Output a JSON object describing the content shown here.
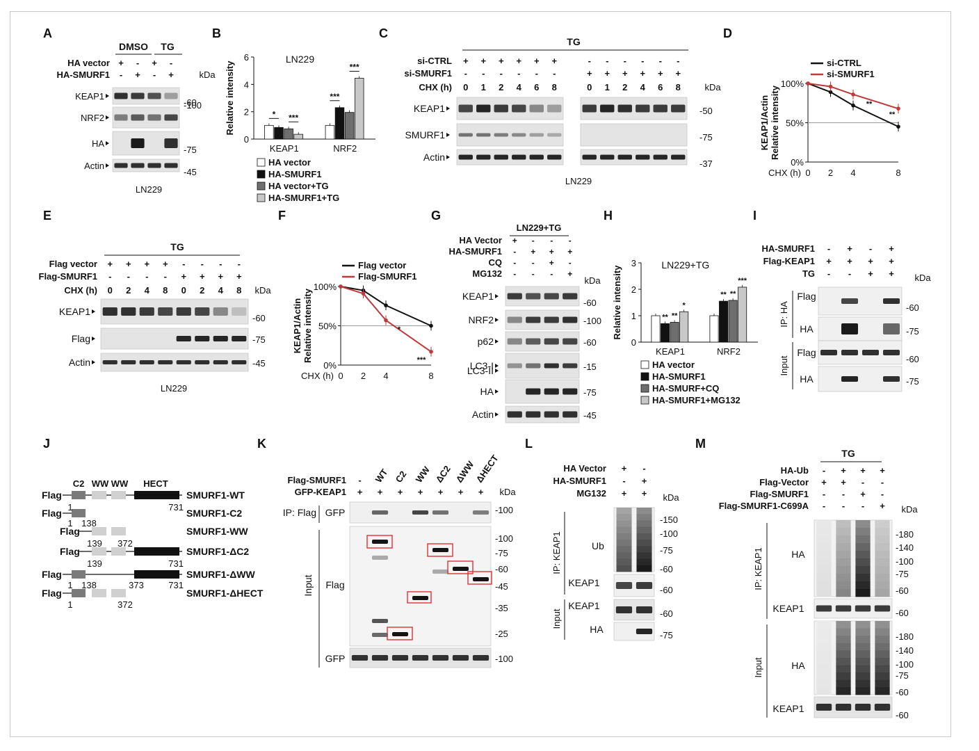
{
  "panels": {
    "A": "A",
    "B": "B",
    "C": "C",
    "D": "D",
    "E": "E",
    "F": "F",
    "G": "G",
    "H": "H",
    "I": "I",
    "J": "J",
    "K": "K",
    "L": "L",
    "M": "M"
  },
  "panel_a": {
    "groups": [
      "DMSO",
      "TG"
    ],
    "rows": [
      {
        "label": "HA vector",
        "signs": [
          "+",
          "-",
          "+",
          "-"
        ]
      },
      {
        "label": "HA-SMURF1",
        "signs": [
          "-",
          "+",
          "-",
          "+"
        ]
      }
    ],
    "kda": "kDa",
    "blots": [
      {
        "label": "KEAP1",
        "marker": "60"
      },
      {
        "label": "NRF2",
        "marker": "100"
      },
      {
        "label": "HA",
        "marker": "75"
      },
      {
        "label": "Actin",
        "marker": "45"
      }
    ],
    "cell": "LN229"
  },
  "panel_b": {
    "chart_data": {
      "type": "bar",
      "title": "LN229",
      "ylabel": "Relative intensity",
      "ylim": [
        0,
        6
      ],
      "yticks": [
        "0",
        "2",
        "4",
        "6"
      ],
      "categories": [
        "KEAP1",
        "NRF2"
      ],
      "series": [
        {
          "name": "HA vector",
          "values": [
            1.0,
            1.0
          ],
          "color": "#ffffff"
        },
        {
          "name": "HA-SMURF1",
          "values": [
            0.85,
            2.3
          ],
          "color": "#111111"
        },
        {
          "name": "HA vector+TG",
          "values": [
            0.75,
            1.95
          ],
          "color": "#6e6e6e"
        },
        {
          "name": "HA-SMURF1+TG",
          "values": [
            0.35,
            4.45
          ],
          "color": "#c8c8c8"
        }
      ],
      "sig": [
        "*",
        "***",
        "***",
        "***"
      ]
    }
  },
  "panel_c": {
    "treatment": "TG",
    "rows": [
      {
        "label": "si-CTRL",
        "signs": [
          "+",
          "+",
          "+",
          "+",
          "+",
          "+",
          "-",
          "-",
          "-",
          "-",
          "-",
          "-"
        ]
      },
      {
        "label": "si-SMURF1",
        "signs": [
          "-",
          "-",
          "-",
          "-",
          "-",
          "-",
          "+",
          "+",
          "+",
          "+",
          "+",
          "+"
        ]
      }
    ],
    "chx_label": "CHX (h)",
    "chx": [
      "0",
      "1",
      "2",
      "4",
      "6",
      "8",
      "0",
      "1",
      "2",
      "4",
      "6",
      "8"
    ],
    "kda": "kDa",
    "blots": [
      {
        "label": "KEAP1",
        "marker": "50"
      },
      {
        "label": "SMURF1",
        "marker": "75"
      },
      {
        "label": "Actin",
        "marker": "37"
      }
    ],
    "cell": "LN229"
  },
  "panel_d": {
    "chart_data": {
      "type": "line",
      "ylabel": "KEAP1/Actin Relative intensity",
      "xlabel": "CHX (h)",
      "x": [
        0,
        2,
        4,
        8
      ],
      "yticks": [
        "0%",
        "50%",
        "100%"
      ],
      "series": [
        {
          "name": "si-CTRL",
          "values": [
            100,
            89,
            72,
            45
          ],
          "color": "#111111"
        },
        {
          "name": "si-SMURF1",
          "values": [
            100,
            96,
            86,
            68
          ],
          "color": "#c0393b"
        }
      ],
      "sig": [
        "**",
        "**"
      ]
    }
  },
  "panel_e": {
    "treatment": "TG",
    "rows": [
      {
        "label": "Flag vector",
        "signs": [
          "+",
          "+",
          "+",
          "+",
          "-",
          "-",
          "-",
          "-"
        ]
      },
      {
        "label": "Flag-SMURF1",
        "signs": [
          "-",
          "-",
          "-",
          "-",
          "+",
          "+",
          "+",
          "+"
        ]
      }
    ],
    "chx_label": "CHX (h)",
    "chx": [
      "0",
      "2",
      "4",
      "8",
      "0",
      "2",
      "4",
      "8"
    ],
    "kda": "kDa",
    "blots": [
      {
        "label": "KEAP1",
        "marker": "60"
      },
      {
        "label": "Flag",
        "marker": "75"
      },
      {
        "label": "Actin",
        "marker": "45"
      }
    ],
    "cell": "LN229"
  },
  "panel_f": {
    "chart_data": {
      "type": "line",
      "ylabel": "KEAP1/Actin Relative intensity",
      "xlabel": "CHX (h)",
      "x": [
        0,
        2,
        4,
        8
      ],
      "yticks": [
        "0%",
        "50%",
        "100%"
      ],
      "series": [
        {
          "name": "Flag vector",
          "values": [
            100,
            95,
            76,
            50
          ],
          "color": "#111111"
        },
        {
          "name": "Flag-SMURF1",
          "values": [
            100,
            91,
            57,
            17
          ],
          "color": "#c0393b"
        }
      ],
      "sig": [
        "*",
        "***"
      ]
    }
  },
  "panel_g": {
    "treatment": "LN229+TG",
    "rows": [
      {
        "label": "HA Vector",
        "signs": [
          "+",
          "-",
          "-",
          "-"
        ]
      },
      {
        "label": "HA-SMURF1",
        "signs": [
          "-",
          "+",
          "+",
          "+"
        ]
      },
      {
        "label": "CQ",
        "signs": [
          "-",
          "-",
          "+",
          "-"
        ]
      },
      {
        "label": "MG132",
        "signs": [
          "-",
          "-",
          "-",
          "+"
        ]
      }
    ],
    "kda": "kDa",
    "blots": [
      {
        "label": "KEAP1",
        "marker": "60"
      },
      {
        "label": "NRF2",
        "marker": "100"
      },
      {
        "label": "p62",
        "marker": "60"
      },
      {
        "label": "LC3-I",
        "marker": "15"
      },
      {
        "label": "LC3-II",
        "marker": ""
      },
      {
        "label": "HA",
        "marker": "75"
      },
      {
        "label": "Actin",
        "marker": "45"
      }
    ]
  },
  "panel_h": {
    "chart_data": {
      "type": "bar",
      "title": "LN229+TG",
      "ylabel": "Relative intensity",
      "ylim": [
        0,
        3
      ],
      "yticks": [
        "0",
        "1",
        "2",
        "3"
      ],
      "categories": [
        "KEAP1",
        "NRF2"
      ],
      "series": [
        {
          "name": "HA vector",
          "values": [
            1.0,
            1.0
          ],
          "color": "#ffffff"
        },
        {
          "name": "HA-SMURF1",
          "values": [
            0.7,
            1.55
          ],
          "color": "#111111"
        },
        {
          "name": "HA-SMURF+CQ",
          "values": [
            0.75,
            1.58
          ],
          "color": "#6e6e6e"
        },
        {
          "name": "HA-SMURF1+MG132",
          "values": [
            1.15,
            2.08
          ],
          "color": "#c8c8c8"
        }
      ],
      "sig": [
        "**",
        "**",
        "*",
        "**",
        "**",
        "***"
      ]
    }
  },
  "panel_i": {
    "rows": [
      {
        "label": "HA-SMURF1",
        "signs": [
          "-",
          "+",
          "-",
          "+"
        ]
      },
      {
        "label": "Flag-KEAP1",
        "signs": [
          "+",
          "+",
          "+",
          "+"
        ]
      },
      {
        "label": "TG",
        "signs": [
          "-",
          "-",
          "+",
          "+"
        ]
      }
    ],
    "kda": "kDa",
    "ip": "IP: HA",
    "input": "Input",
    "blots": [
      {
        "label": "Flag",
        "marker": "60"
      },
      {
        "label": "HA",
        "marker": "75"
      },
      {
        "label": "Flag",
        "marker": "60"
      },
      {
        "label": "HA",
        "marker": "75"
      }
    ]
  },
  "panel_j": {
    "domains": [
      "C2",
      "WW",
      "WW",
      "HECT"
    ],
    "constructs": [
      {
        "name": "SMURF1-WT",
        "nums": [
          "1",
          "731"
        ]
      },
      {
        "name": "SMURF1-C2",
        "nums": [
          "1",
          "138"
        ]
      },
      {
        "name": "SMURF1-WW",
        "nums": [
          "139",
          "372"
        ]
      },
      {
        "name": "SMURF1-ΔC2",
        "nums": [
          "139",
          "731"
        ]
      },
      {
        "name": "SMURF1-ΔWW",
        "nums": [
          "1",
          "138",
          "373",
          "731"
        ]
      },
      {
        "name": "SMURF1-ΔHECT",
        "nums": [
          "1",
          "372"
        ]
      }
    ],
    "flag": "Flag"
  },
  "panel_k": {
    "rows": [
      {
        "label": "Flag-SMURF1",
        "signs": [
          "-",
          "WT",
          "C2",
          "WW",
          "ΔC2",
          "ΔWW",
          "ΔHECT"
        ]
      },
      {
        "label": "GFP-KEAP1",
        "signs": [
          "+",
          "+",
          "+",
          "+",
          "+",
          "+",
          "+"
        ]
      }
    ],
    "kda": "kDa",
    "ip": "IP: Flag",
    "input": "Input",
    "blots": [
      {
        "label": "GFP"
      },
      {
        "label": "Flag"
      },
      {
        "label": "GFP"
      }
    ],
    "markers": [
      "100",
      "100",
      "75",
      "60",
      "45",
      "35",
      "25",
      "100"
    ]
  },
  "panel_l": {
    "rows": [
      {
        "label": "HA Vector",
        "signs": [
          "+",
          "-"
        ]
      },
      {
        "label": "HA-SMURF1",
        "signs": [
          "-",
          "+"
        ]
      },
      {
        "label": "MG132",
        "signs": [
          "+",
          "+"
        ]
      }
    ],
    "kda": "kDa",
    "ip": "IP: KEAP1",
    "input": "Input",
    "blots": [
      {
        "label": "Ub"
      },
      {
        "label": "KEAP1"
      },
      {
        "label": "KEAP1"
      },
      {
        "label": "HA"
      }
    ],
    "markers": [
      "150",
      "100",
      "75",
      "60",
      "60",
      "60",
      "75"
    ]
  },
  "panel_m": {
    "treatment": "TG",
    "rows": [
      {
        "label": "HA-Ub",
        "signs": [
          "-",
          "+",
          "+",
          "+"
        ]
      },
      {
        "label": "Flag-Vector",
        "signs": [
          "+",
          "+",
          "-",
          "-"
        ]
      },
      {
        "label": "Flag-SMURF1",
        "signs": [
          "-",
          "-",
          "+",
          "-"
        ]
      },
      {
        "label": "Flag-SMURF1-C699A",
        "signs": [
          "-",
          "-",
          "-",
          "+"
        ]
      }
    ],
    "kda": "kDa",
    "ip": "IP: KEAP1",
    "input": "Input",
    "blots": [
      {
        "label": "HA"
      },
      {
        "label": "KEAP1"
      },
      {
        "label": "HA"
      },
      {
        "label": "KEAP1"
      }
    ],
    "markers_top": [
      "180",
      "140",
      "100",
      "75",
      "60",
      "60"
    ],
    "markers_bot": [
      "180",
      "140",
      "100",
      "75",
      "60",
      "60"
    ]
  }
}
